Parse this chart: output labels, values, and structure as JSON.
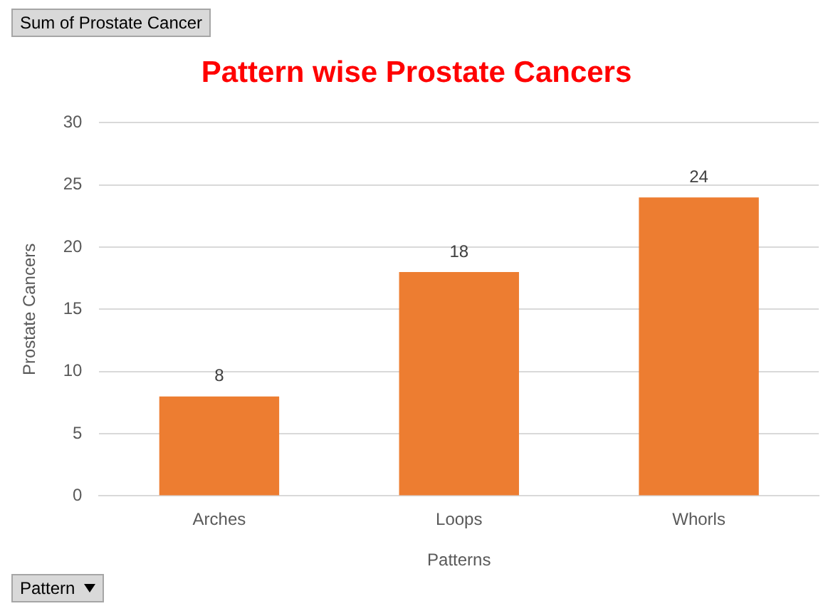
{
  "chart_data": {
    "type": "bar",
    "title": "Pattern wise Prostate Cancers",
    "xlabel": "Patterns",
    "ylabel": "Prostate Cancers",
    "categories": [
      "Arches",
      "Loops",
      "Whorls"
    ],
    "values": [
      8,
      18,
      24
    ],
    "color": "#ed7d31",
    "ylim": [
      0,
      30
    ],
    "yticks": [
      0,
      5,
      10,
      15,
      20,
      25,
      30
    ],
    "grid": "y",
    "data_labels": true,
    "legend": false,
    "annotations": [
      "Sum of Prostate Cancer",
      "Pattern"
    ]
  }
}
